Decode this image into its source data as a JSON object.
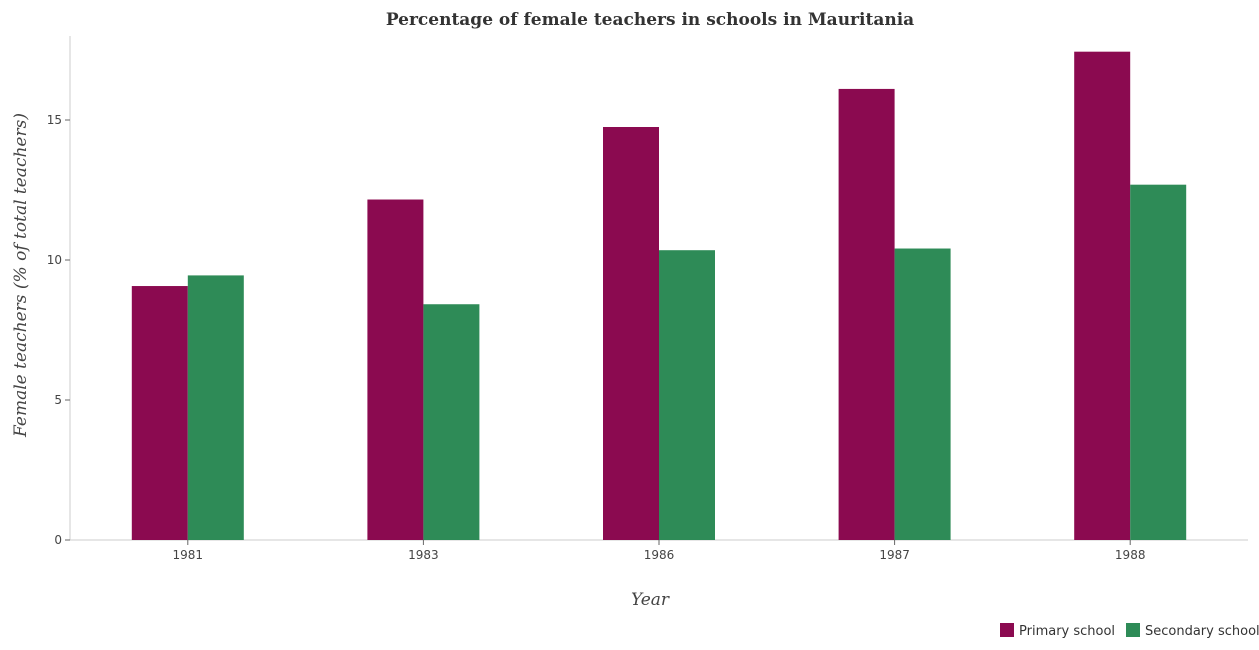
{
  "chart_data": {
    "type": "bar",
    "title": "Percentage of female teachers in schools in Mauritania",
    "xlabel": "Year",
    "ylabel": "Female teachers (% of total teachers)",
    "categories": [
      "1981",
      "1983",
      "1986",
      "1987",
      "1988"
    ],
    "series": [
      {
        "name": "Primary school",
        "color": "#8b0a50",
        "values": [
          9.07,
          12.16,
          14.75,
          16.11,
          17.44
        ]
      },
      {
        "name": "Secondary school",
        "color": "#2e8b57",
        "values": [
          9.45,
          8.42,
          10.35,
          10.41,
          12.69
        ]
      }
    ],
    "ylim": [
      0,
      18
    ],
    "yticks": [
      0,
      5,
      10,
      15
    ],
    "grid": false,
    "legend_position": "bottom-right"
  }
}
